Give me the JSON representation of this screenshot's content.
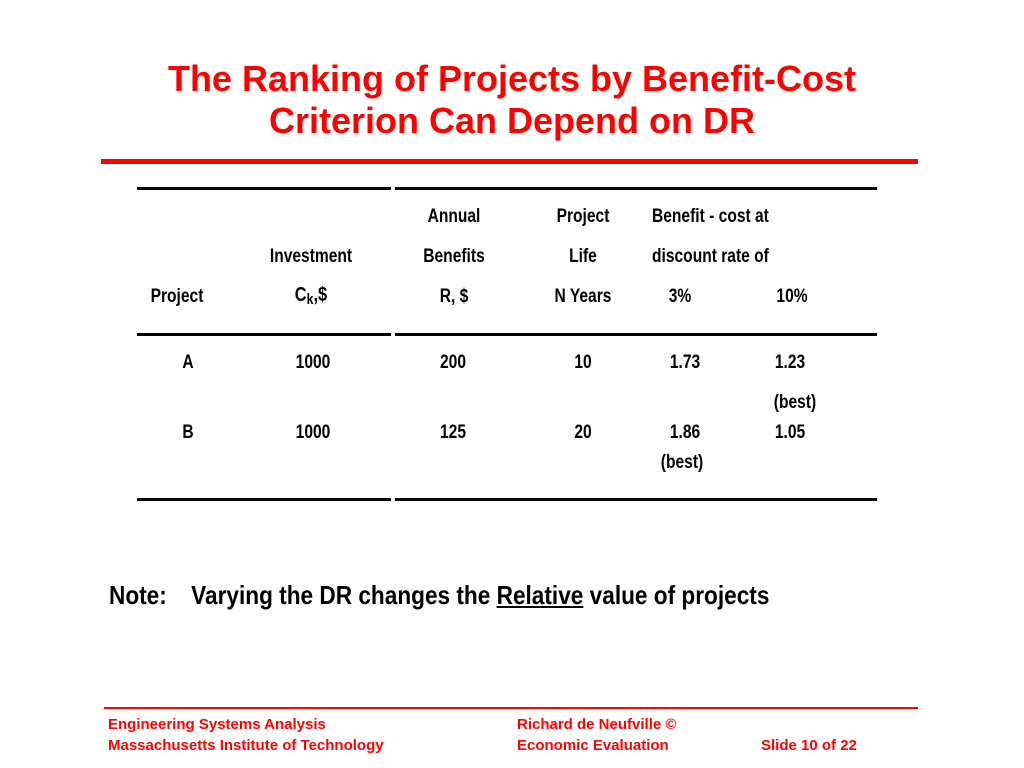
{
  "title": {
    "line1": "The Ranking of Projects by Benefit-Cost",
    "line2": "Criterion Can Depend on DR"
  },
  "table": {
    "headers": {
      "project": "Project",
      "investment_1": "Investment",
      "investment_2_prefix": "C",
      "investment_2_sub": "k",
      "investment_2_suffix": ",$",
      "benefits_1": "Annual",
      "benefits_2": "Benefits",
      "benefits_3": "R, $",
      "life_1": "Project",
      "life_2": "Life",
      "life_3": "N Years",
      "bc_1": "Benefit - cost at",
      "bc_2": "discount rate of",
      "rate_3": "3%",
      "rate_10": "10%"
    },
    "rows": [
      {
        "project": "A",
        "investment": "1000",
        "benefits": "200",
        "life": "10",
        "bc3": "1.73",
        "bc10": "1.23",
        "bc3_note": "",
        "bc10_note": "(best)"
      },
      {
        "project": "B",
        "investment": "1000",
        "benefits": "125",
        "life": "20",
        "bc3": "1.86",
        "bc10": "1.05",
        "bc3_note": "(best)",
        "bc10_note": ""
      }
    ]
  },
  "note": {
    "label": "Note:",
    "text_before": "Varying the DR changes the ",
    "emphasis": "Relative",
    "text_after": " value of projects"
  },
  "footer": {
    "left_line1": "Engineering Systems Analysis",
    "left_line2": "Massachusetts Institute of Technology",
    "mid_line1": "Richard de Neufville  ©",
    "mid_line2": "Economic Evaluation",
    "slide": "Slide 10 of 22"
  },
  "colors": {
    "accent": "#ff0000",
    "text": "#000000",
    "background": "#ffffff"
  }
}
